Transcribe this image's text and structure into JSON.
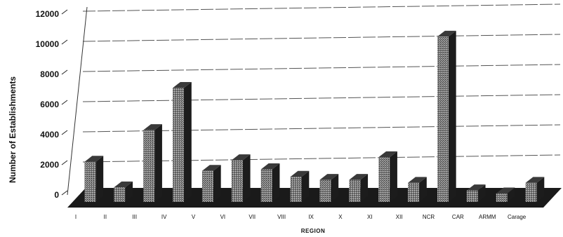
{
  "chart_data": {
    "type": "bar",
    "style": "3d-column",
    "title": "",
    "xlabel": "REGION",
    "ylabel": "Number of Establishments",
    "ylim": [
      0,
      12000
    ],
    "yticks": [
      "0",
      "2000",
      "4000",
      "6000",
      "8000",
      "10000",
      "12000"
    ],
    "grid": true,
    "categories": [
      "I",
      "II",
      "III",
      "IV",
      "V",
      "VI",
      "VII",
      "VIII",
      "IX",
      "X",
      "XI",
      "XII",
      "NCR",
      "CAR",
      "ARMM",
      "Carage"
    ],
    "values": [
      2200,
      500,
      4300,
      7100,
      1600,
      2300,
      1700,
      1200,
      1000,
      1000,
      2500,
      800,
      10500,
      300,
      100,
      800
    ],
    "colors": {
      "bar_front": "#7a7a7a",
      "bar_side": "#1c1c1c",
      "bar_top": "#3a3a3a",
      "floor": "#1a1a1a",
      "gridline": "#555555"
    }
  }
}
